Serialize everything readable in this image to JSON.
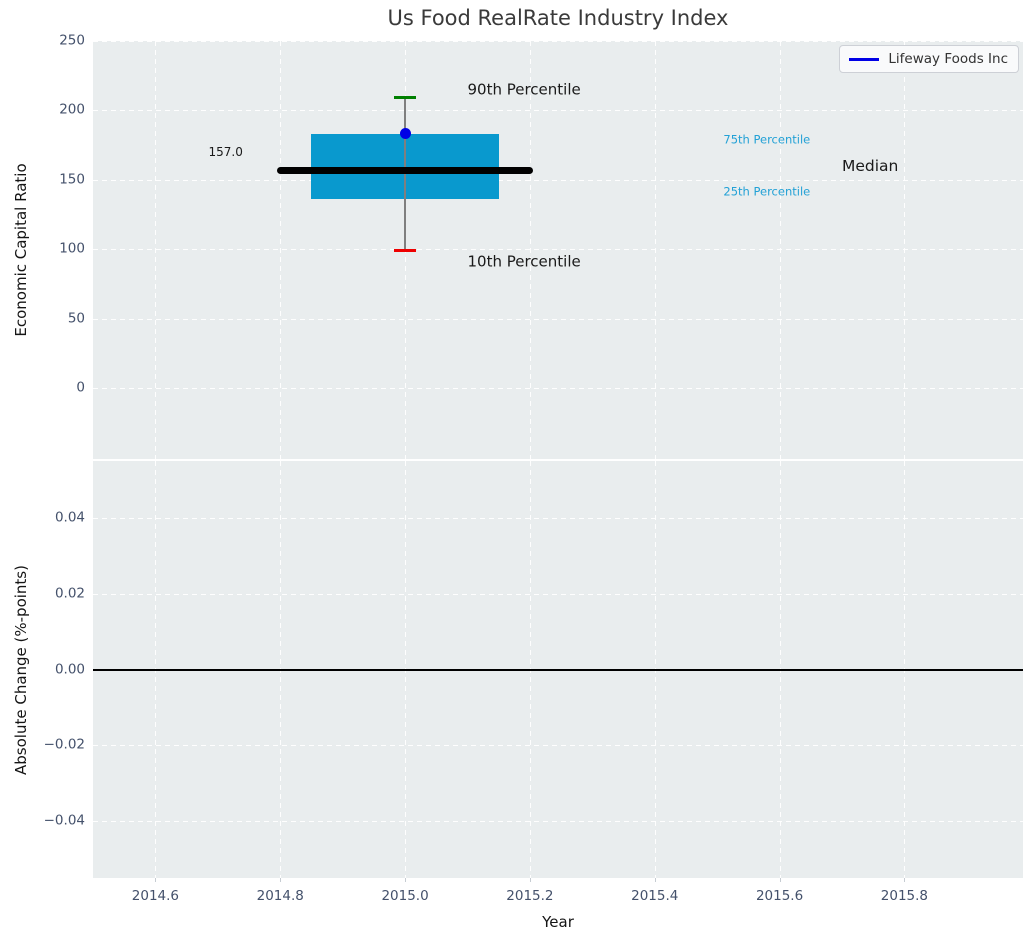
{
  "figure": {
    "title": "Us Food RealRate Industry Index"
  },
  "legend": {
    "label": "Lifeway Foods Inc",
    "line_color": "#0000e6"
  },
  "colors": {
    "box_fill": "#0999ce",
    "median_line": "#000000",
    "whisker": "#7f7f7f",
    "cap_upper": "#008000",
    "cap_lower": "#ee0000",
    "company_dot": "#0000e6",
    "percentile_label_blue": "#22a1d6",
    "axes_background": "#e9edee",
    "tick_label": "#44516b"
  },
  "chart_data": [
    {
      "type": "box",
      "title": "Us Food RealRate Industry Index",
      "ylabel": "Economic Capital Ratio",
      "xlabel": "Year",
      "grid": true,
      "legend_position": "upper right",
      "xlim": [
        2014.5,
        2015.99
      ],
      "ylim": [
        -51,
        250
      ],
      "xticks": [
        2014.6,
        2014.8,
        2015.0,
        2015.2,
        2015.4,
        2015.6,
        2015.8
      ],
      "xtick_labels": [
        "2014.6",
        "2014.8",
        "2015.0",
        "2015.2",
        "2015.4",
        "2015.6",
        "2015.8"
      ],
      "yticks": [
        250,
        200,
        150,
        100,
        50,
        0
      ],
      "ytick_labels": [
        "250",
        "200",
        "150",
        "100",
        "50",
        "0"
      ],
      "box": {
        "x": 2015.0,
        "p10": 99,
        "p25": 136,
        "median": 157.0,
        "p75": 183,
        "p90": 209,
        "box_half_width": 0.15,
        "median_half_width": 0.205
      },
      "company_point": {
        "name": "Lifeway Foods Inc",
        "x": 2015.0,
        "y": 183.5
      },
      "annotations": [
        {
          "id": "p90-label",
          "text": "90th Percentile",
          "x": 2015.1,
          "y": 215,
          "size": 15,
          "color": "#1a1a1a"
        },
        {
          "id": "p10-label",
          "text": "10th Percentile",
          "x": 2015.1,
          "y": 91,
          "size": 15,
          "color": "#1a1a1a"
        },
        {
          "id": "p75-label",
          "text": "75th Percentile",
          "x": 2015.51,
          "y": 179,
          "size": 11.5,
          "color": "#22a1d6"
        },
        {
          "id": "p25-label",
          "text": "25th Percentile",
          "x": 2015.51,
          "y": 141,
          "size": 11.5,
          "color": "#22a1d6"
        },
        {
          "id": "median-label",
          "text": "Median",
          "x": 2015.7,
          "y": 159,
          "size": 15.5,
          "color": "#1a1a1a"
        },
        {
          "id": "median-value-label",
          "text": "157.0",
          "x": 2014.685,
          "y": 169,
          "size": 12,
          "color": "#1a1a1a"
        }
      ]
    },
    {
      "type": "line",
      "ylabel": "Absolute Change (%-points)",
      "xlabel": "Year",
      "grid": true,
      "xlim": [
        2014.5,
        2015.99
      ],
      "ylim": [
        -0.055,
        0.055
      ],
      "yticks": [
        0.04,
        0.02,
        0.0,
        -0.02,
        -0.04
      ],
      "ytick_labels": [
        "0.04",
        "0.02",
        "0.00",
        "−0.02",
        "−0.04"
      ],
      "zero_line": 0.0,
      "series": []
    }
  ]
}
